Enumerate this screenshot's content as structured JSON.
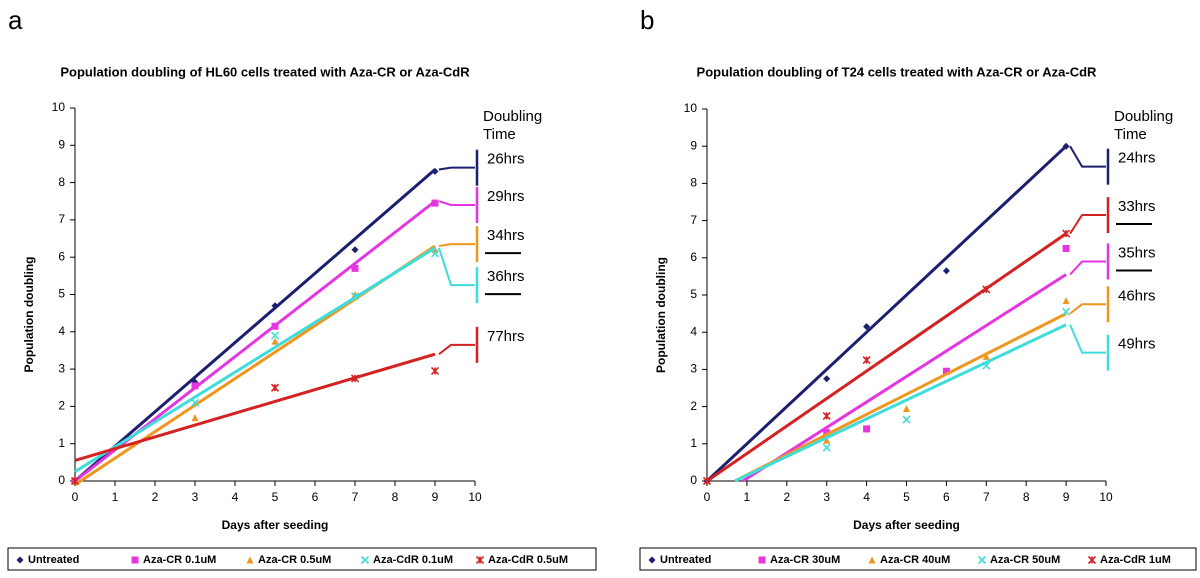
{
  "chart_data": [
    {
      "type": "scatter",
      "panel_label": "a",
      "title": "Population doubling of HL60 cells treated with Aza-CR or Aza-CdR",
      "x_label": "Days after seeding",
      "y_label": "Population doubling",
      "doubling_header": [
        "Doubling",
        "Time"
      ],
      "xlim": [
        0,
        10
      ],
      "ylim": [
        0,
        10
      ],
      "xticks": [
        0,
        1,
        2,
        3,
        4,
        5,
        6,
        7,
        8,
        9,
        10
      ],
      "yticks": [
        0,
        1,
        2,
        3,
        4,
        5,
        6,
        7,
        8,
        9,
        10
      ],
      "grid": false,
      "legend": "bottom",
      "series": [
        {
          "name": "Untreated",
          "color": "#1b1f6e",
          "marker": "diamond",
          "x": [
            0,
            3,
            5,
            7,
            9
          ],
          "values": [
            0,
            2.65,
            4.7,
            6.2,
            8.3
          ],
          "trend_x": [
            0,
            9
          ],
          "trend_values": [
            0,
            8.35
          ],
          "doubling_time": "26hrs",
          "doubling_y": 8.4,
          "underline": false
        },
        {
          "name": "Aza-CR 0.1uM",
          "color": "#e535e0",
          "marker": "square",
          "x": [
            0,
            3,
            5,
            7,
            9
          ],
          "values": [
            0,
            2.55,
            4.15,
            5.7,
            7.45
          ],
          "trend_x": [
            0,
            9
          ],
          "trend_values": [
            0,
            7.5
          ],
          "doubling_time": "29hrs",
          "doubling_y": 7.4,
          "underline": false
        },
        {
          "name": "Aza-CR 0.5uM",
          "color": "#f0961e",
          "marker": "triangle",
          "x": [
            0,
            3,
            5,
            7,
            9
          ],
          "values": [
            0,
            1.7,
            3.75,
            5.0,
            6.2
          ],
          "trend_x": [
            0,
            9
          ],
          "trend_values": [
            -0.1,
            6.3
          ],
          "doubling_time": "34hrs",
          "doubling_y": 6.35,
          "underline": true
        },
        {
          "name": "Aza-CdR 0.1uM",
          "color": "#3fdcdc",
          "marker": "x",
          "x": [
            3,
            5,
            7,
            9
          ],
          "values": [
            2.1,
            3.9,
            4.95,
            6.1
          ],
          "trend_x": [
            0,
            9
          ],
          "trend_values": [
            0.25,
            6.25
          ],
          "doubling_time": "36hrs",
          "doubling_y": 5.25,
          "underline": true
        },
        {
          "name": "Aza-CdR 0.5uM",
          "color": "#d42222",
          "marker": "star",
          "x": [
            0,
            5,
            7,
            9
          ],
          "values": [
            0,
            2.5,
            2.75,
            2.95
          ],
          "trend_x": [
            0,
            9
          ],
          "trend_values": [
            0.55,
            3.4
          ],
          "doubling_time": "77hrs",
          "doubling_y": 3.65,
          "underline": false
        }
      ]
    },
    {
      "type": "scatter",
      "panel_label": "b",
      "title": "Population doubling of T24 cells treated with Aza-CR or Aza-CdR",
      "x_label": "Days after seeding",
      "y_label": "Population doubling",
      "doubling_header": [
        "Doubling",
        "Time"
      ],
      "xlim": [
        0,
        10
      ],
      "ylim": [
        0,
        10
      ],
      "xticks": [
        0,
        1,
        2,
        3,
        4,
        5,
        6,
        7,
        8,
        9,
        10
      ],
      "yticks": [
        0,
        1,
        2,
        3,
        4,
        5,
        6,
        7,
        8,
        9,
        10
      ],
      "grid": false,
      "legend": "bottom",
      "series": [
        {
          "name": "Untreated",
          "color": "#1b1f6e",
          "marker": "diamond",
          "x": [
            0,
            3,
            4,
            6,
            9
          ],
          "values": [
            0,
            2.75,
            4.15,
            5.65,
            9.0
          ],
          "trend_x": [
            0,
            9
          ],
          "trend_values": [
            0,
            9.0
          ],
          "doubling_time": "24hrs",
          "doubling_y": 8.45,
          "underline": false
        },
        {
          "name": "Aza-CR 30uM",
          "color": "#e535e0",
          "marker": "square",
          "x": [
            3,
            4,
            6,
            9
          ],
          "values": [
            1.3,
            1.4,
            2.95,
            6.25
          ],
          "trend_x": [
            0.9,
            9
          ],
          "trend_values": [
            0,
            5.55
          ],
          "doubling_time": "35hrs",
          "doubling_y": 5.9,
          "underline": true
        },
        {
          "name": "Aza-CR 40uM",
          "color": "#f0961e",
          "marker": "triangle",
          "x": [
            3,
            5,
            7,
            9
          ],
          "values": [
            1.1,
            1.95,
            3.35,
            4.85
          ],
          "trend_x": [
            0.7,
            9
          ],
          "trend_values": [
            0,
            4.5
          ],
          "doubling_time": "46hrs",
          "doubling_y": 4.75,
          "underline": false
        },
        {
          "name": "Aza-CR 50uM",
          "color": "#3fdcdc",
          "marker": "x",
          "x": [
            3,
            5,
            7,
            9
          ],
          "values": [
            0.9,
            1.65,
            3.1,
            4.55
          ],
          "trend_x": [
            0.7,
            9
          ],
          "trend_values": [
            0,
            4.2
          ],
          "doubling_time": "49hrs",
          "doubling_y": 3.45,
          "underline": false
        },
        {
          "name": "Aza-CdR 1uM",
          "color": "#d42222",
          "marker": "star",
          "x": [
            0,
            3,
            4,
            7,
            9
          ],
          "values": [
            0,
            1.75,
            3.25,
            5.15,
            6.65
          ],
          "trend_x": [
            0,
            9
          ],
          "trend_values": [
            0,
            6.65
          ],
          "doubling_time": "33hrs",
          "doubling_y": 7.15,
          "underline": true
        }
      ]
    }
  ]
}
